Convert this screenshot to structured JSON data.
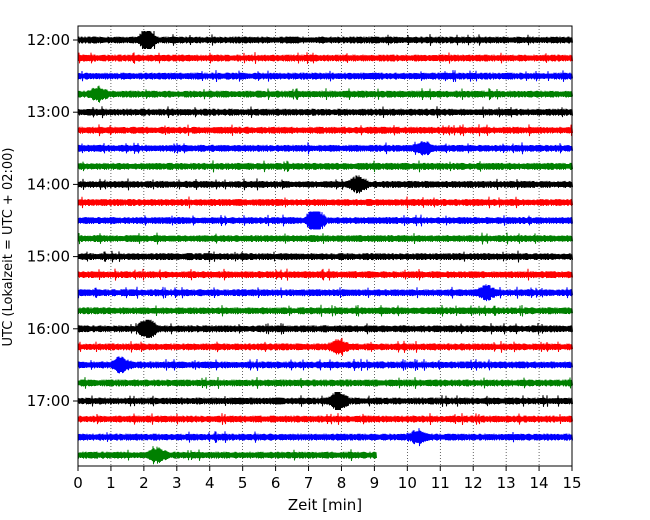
{
  "chart_data": {
    "type": "line",
    "subtype": "helicorder",
    "title": "",
    "xlabel": "Zeit  [min]",
    "ylabel": "UTC (Lokalzeit = UTC + 02:00)",
    "xlim": [
      0,
      15
    ],
    "x_ticks": [
      "0",
      "1",
      "2",
      "3",
      "4",
      "5",
      "6",
      "7",
      "8",
      "9",
      "10",
      "11",
      "12",
      "13",
      "14",
      "15"
    ],
    "y_tick_labels": [
      "12:00",
      "13:00",
      "14:00",
      "15:00",
      "16:00",
      "17:00"
    ],
    "trace_interval_minutes": 15,
    "start_time": "12:00",
    "vertical_grid": "dotted",
    "colors": [
      "#000000",
      "#ff0000",
      "#0000ff",
      "#008000"
    ],
    "traces": [
      {
        "start": "12:00",
        "color": "#000000",
        "end_minute": 15,
        "events": [
          [
            2.1,
            2.4
          ]
        ]
      },
      {
        "start": "12:15",
        "color": "#ff0000",
        "end_minute": 15,
        "events": []
      },
      {
        "start": "12:30",
        "color": "#0000ff",
        "end_minute": 15,
        "events": []
      },
      {
        "start": "12:45",
        "color": "#008000",
        "end_minute": 15,
        "events": [
          [
            0.6,
            1.6
          ]
        ]
      },
      {
        "start": "13:00",
        "color": "#000000",
        "end_minute": 15,
        "events": []
      },
      {
        "start": "13:15",
        "color": "#ff0000",
        "end_minute": 15,
        "events": []
      },
      {
        "start": "13:30",
        "color": "#0000ff",
        "end_minute": 15,
        "events": [
          [
            10.5,
            1.5
          ]
        ]
      },
      {
        "start": "13:45",
        "color": "#008000",
        "end_minute": 15,
        "events": []
      },
      {
        "start": "14:00",
        "color": "#000000",
        "end_minute": 15,
        "events": [
          [
            8.5,
            2.0
          ]
        ]
      },
      {
        "start": "14:15",
        "color": "#ff0000",
        "end_minute": 15,
        "events": []
      },
      {
        "start": "14:30",
        "color": "#0000ff",
        "end_minute": 15,
        "events": [
          [
            7.2,
            3.5
          ]
        ]
      },
      {
        "start": "14:45",
        "color": "#008000",
        "end_minute": 15,
        "events": []
      },
      {
        "start": "15:00",
        "color": "#000000",
        "end_minute": 15,
        "events": []
      },
      {
        "start": "15:15",
        "color": "#ff0000",
        "end_minute": 15,
        "events": []
      },
      {
        "start": "15:30",
        "color": "#0000ff",
        "end_minute": 15,
        "events": [
          [
            12.4,
            1.6
          ]
        ]
      },
      {
        "start": "15:45",
        "color": "#008000",
        "end_minute": 15,
        "events": []
      },
      {
        "start": "16:00",
        "color": "#000000",
        "end_minute": 15,
        "events": [
          [
            2.1,
            2.8
          ]
        ]
      },
      {
        "start": "16:15",
        "color": "#ff0000",
        "end_minute": 15,
        "events": [
          [
            7.9,
            1.6
          ]
        ]
      },
      {
        "start": "16:30",
        "color": "#0000ff",
        "end_minute": 15,
        "events": [
          [
            1.3,
            1.8
          ]
        ]
      },
      {
        "start": "16:45",
        "color": "#008000",
        "end_minute": 15,
        "events": []
      },
      {
        "start": "17:00",
        "color": "#000000",
        "end_minute": 15,
        "events": [
          [
            7.9,
            2.5
          ]
        ]
      },
      {
        "start": "17:15",
        "color": "#ff0000",
        "end_minute": 15,
        "events": []
      },
      {
        "start": "17:30",
        "color": "#0000ff",
        "end_minute": 15,
        "events": [
          [
            10.3,
            1.4
          ]
        ]
      },
      {
        "start": "17:45",
        "color": "#008000",
        "end_minute": 9.05,
        "events": [
          [
            2.4,
            1.5
          ]
        ]
      }
    ]
  }
}
